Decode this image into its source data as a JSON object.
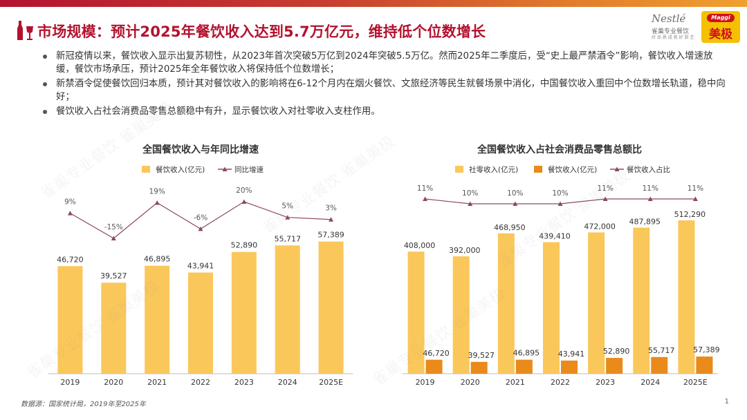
{
  "title": "市场规模：预计2025年餐饮收入达到5.7万亿元，维持低个位数增长",
  "logos": {
    "nestle_name": "Nestlé",
    "nestle_sub1": "雀巢专业餐饮",
    "nestle_sub2": "好  品  质  成  就  好  厨  艺",
    "maggi_brand": "Maggi",
    "maggi_cn": "美极"
  },
  "bullets": [
    "新冠疫情以来，餐饮收入显示出复苏韧性，从2023年首次突破5万亿到2024年突破5.5万亿。然而2025年二季度后，受“史上最严禁酒令”影响，餐饮收入增速放缓，餐饮市场承压，预计2025年全年餐饮收入将保持低个位数增长；",
    "新禁酒令促使餐饮回归本质，预计其对餐饮收入的影响将在6-12个月内在烟火餐饮、文旅经济等民生就餐场景中消化，中国餐饮收入重回中个位数增长轨道，稳中向好；",
    "餐饮收入占社会消费品零售总额稳中有升，显示餐饮收入对社零收入支柱作用。"
  ],
  "colors": {
    "brand_red": "#b3122f",
    "bar_yellow": "#fac75a",
    "bar_orange": "#e98a1b",
    "line": "#8b4a5a"
  },
  "chart_data": [
    {
      "type": "bar",
      "title": "全国餐饮收入与年同比增速",
      "categories": [
        "2019",
        "2020",
        "2021",
        "2022",
        "2023",
        "2024",
        "2025E"
      ],
      "series": [
        {
          "name": "餐饮收入(亿元)",
          "kind": "bar",
          "values": [
            46720,
            39527,
            46895,
            43941,
            52890,
            55717,
            57389
          ],
          "labels": [
            "46,720",
            "39,527",
            "46,895",
            "43,941",
            "52,890",
            "55,717",
            "57,389"
          ]
        },
        {
          "name": "同比增速",
          "kind": "line",
          "values": [
            9,
            -15,
            19,
            -6,
            20,
            5,
            3
          ],
          "labels": [
            "9%",
            "-15%",
            "19%",
            "-6%",
            "20%",
            "5%",
            "3%"
          ]
        }
      ],
      "ylim": [
        0,
        90000
      ],
      "xlabel": "",
      "ylabel": "",
      "legend": "top-center"
    },
    {
      "type": "bar",
      "title": "全国餐饮收入占社会消费品零售总额比",
      "categories": [
        "2019",
        "2020",
        "2021",
        "2022",
        "2023",
        "2024",
        "2025E"
      ],
      "series": [
        {
          "name": "社零收入(亿元)",
          "kind": "bar",
          "values": [
            408000,
            392000,
            468950,
            439410,
            472000,
            487895,
            512290
          ],
          "labels": [
            "408,000",
            "392,000",
            "468,950",
            "439,410",
            "472,000",
            "487,895",
            "512,290"
          ]
        },
        {
          "name": "餐饮收入(亿元)",
          "kind": "bar",
          "values": [
            46720,
            39527,
            46895,
            43941,
            52890,
            55717,
            57389
          ],
          "labels": [
            "46,720",
            "39,527",
            "46,895",
            "43,941",
            "52,890",
            "55,717",
            "57,389"
          ]
        },
        {
          "name": "餐饮收入占比",
          "kind": "line",
          "values": [
            11,
            10,
            10,
            10,
            11,
            11,
            11
          ],
          "labels": [
            "11%",
            "10%",
            "10%",
            "10%",
            "11%",
            "11%",
            "11%"
          ]
        }
      ],
      "ylim": [
        0,
        600000
      ],
      "xlabel": "",
      "ylabel": "",
      "legend": "top-center"
    }
  ],
  "source": "数据源：国家统计局，2019年至2025年",
  "page_number": "1",
  "watermark": "雀巢专业餐饮 雀巢美极"
}
